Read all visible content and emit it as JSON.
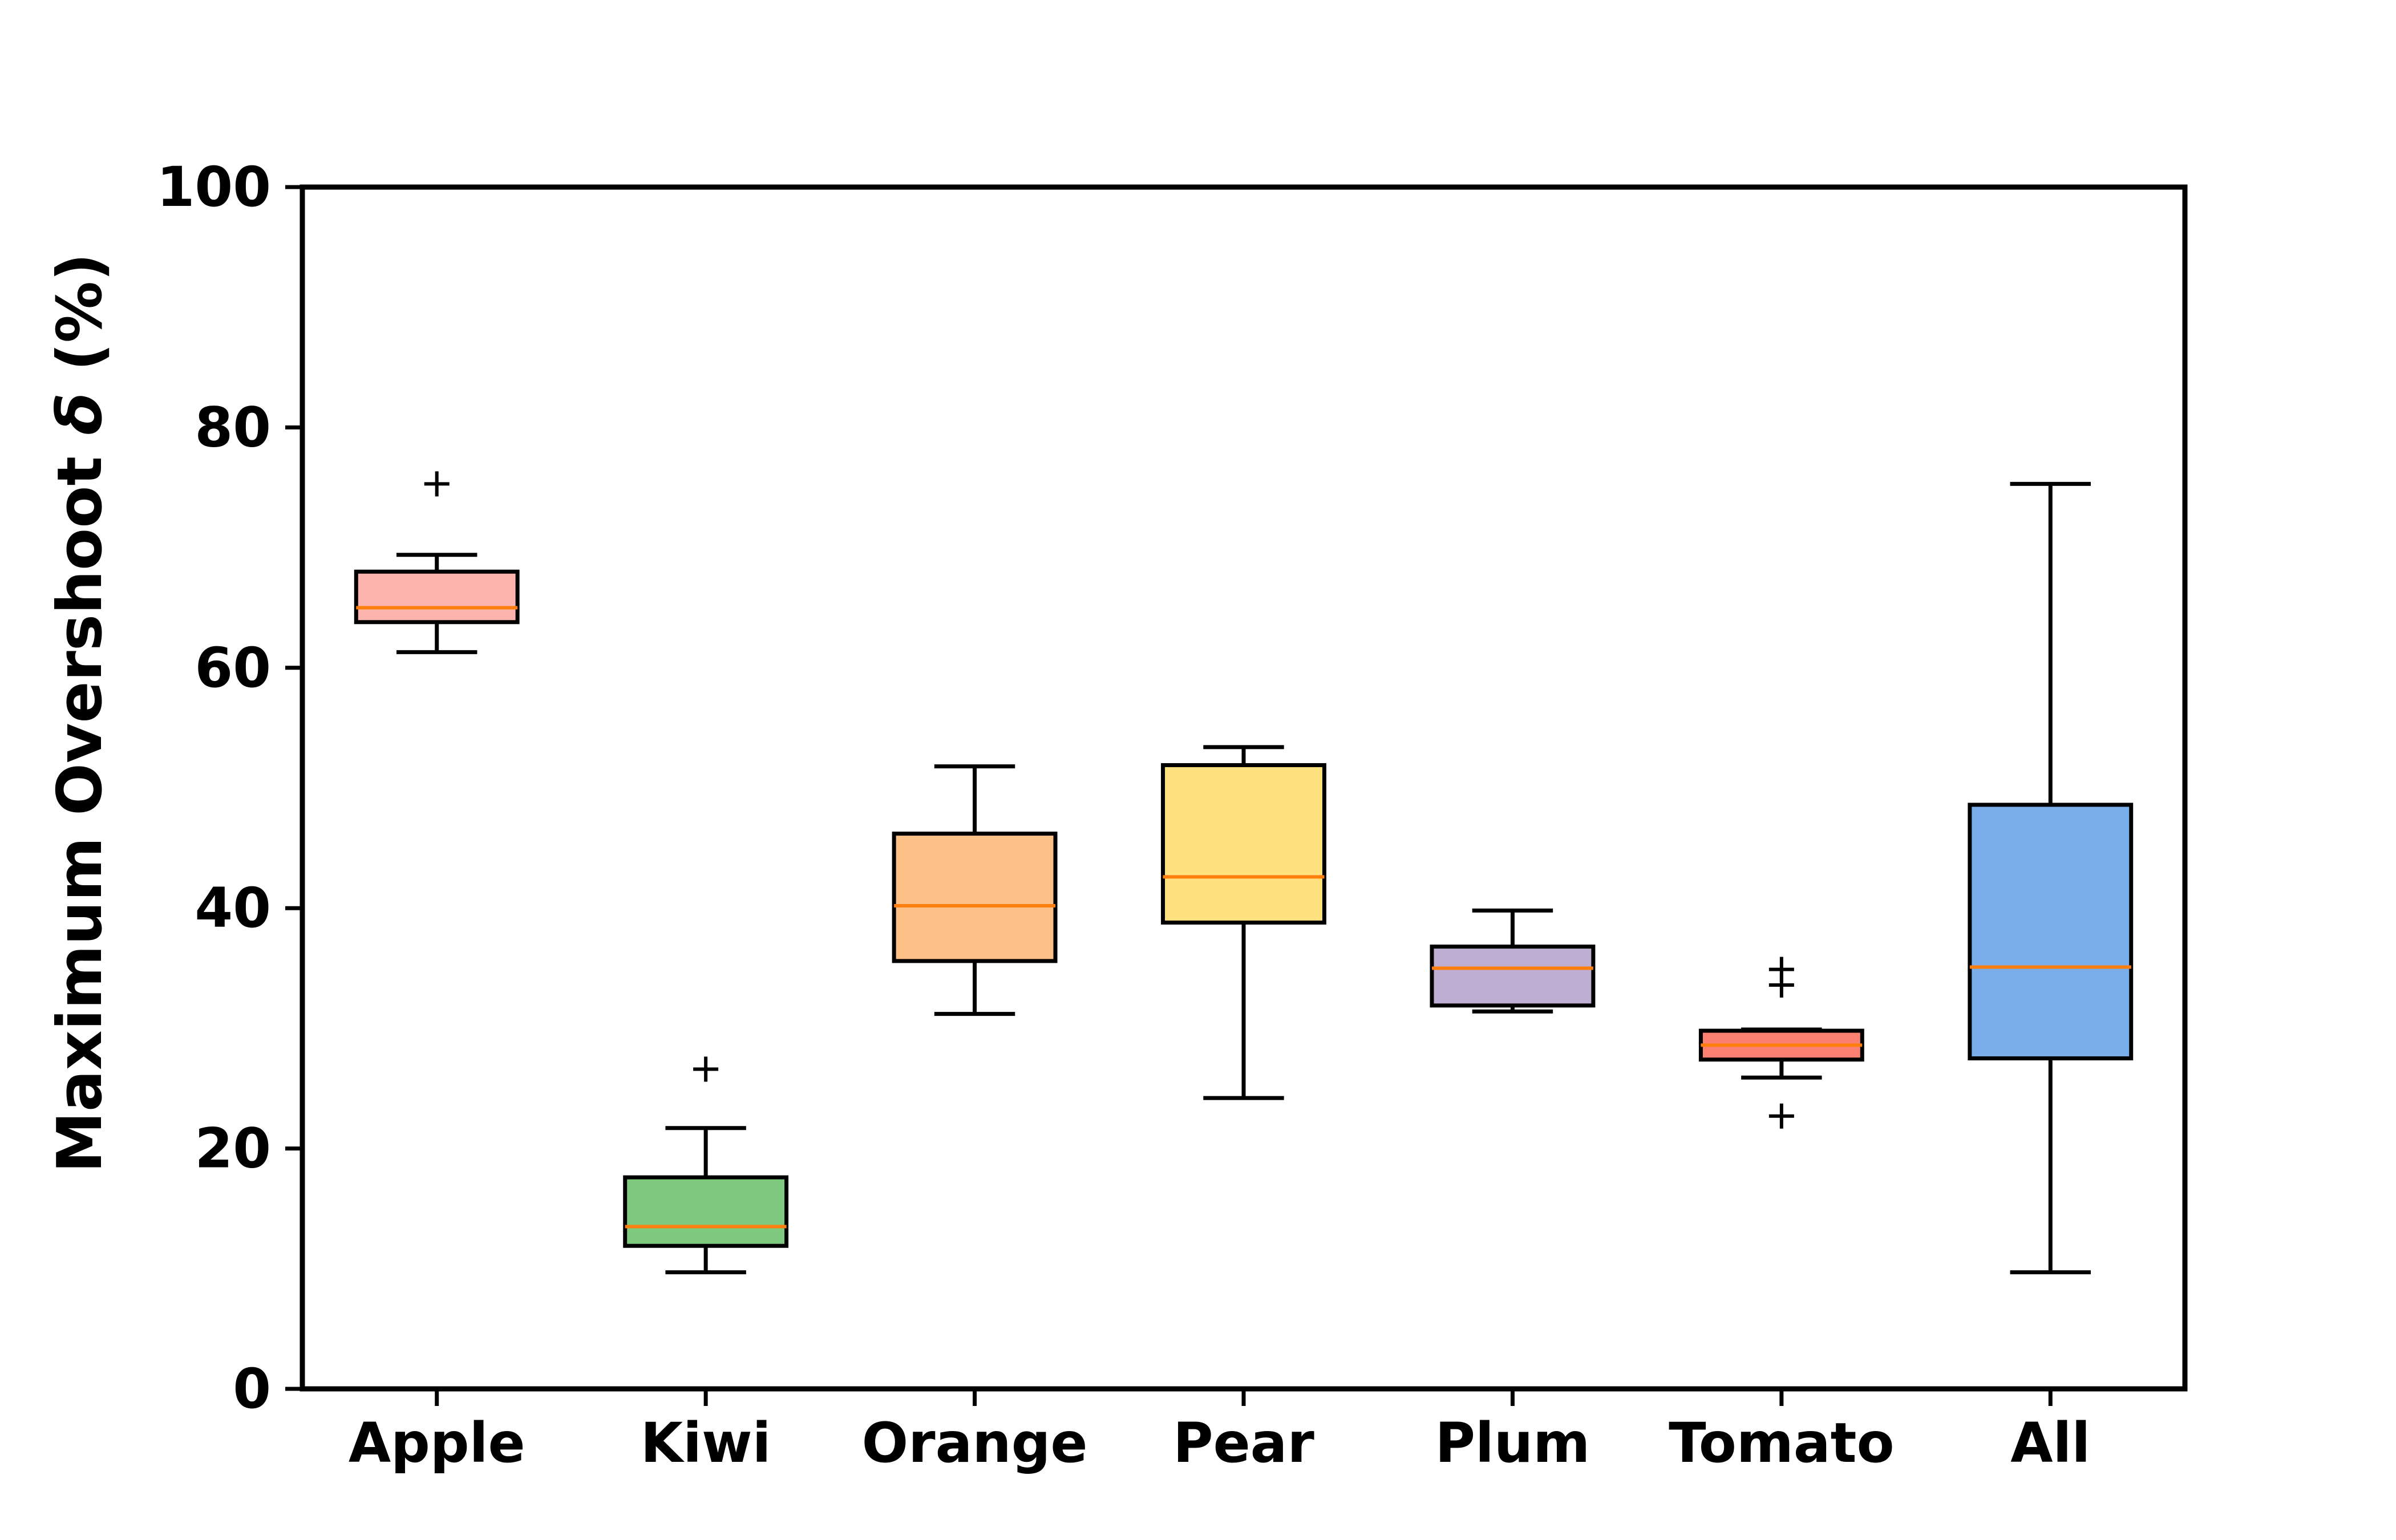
{
  "chart_data": {
    "type": "box",
    "ylabel_text": "Maximum Overshoot ",
    "ylabel_symbol": "δ",
    "ylabel_unit": " (%)",
    "xlabel": "",
    "title": "",
    "ylim": [
      0,
      100
    ],
    "yticks": [
      0,
      20,
      40,
      60,
      80,
      100
    ],
    "ytick_labels": [
      "0",
      "20",
      "40",
      "60",
      "80",
      "100"
    ],
    "grid": false,
    "categories": [
      "Apple",
      "Kiwi",
      "Orange",
      "Pear",
      "Plum",
      "Tomato",
      "All"
    ],
    "boxes": [
      {
        "label": "Apple",
        "whislo": 61.3,
        "q1": 63.8,
        "med": 65.0,
        "q3": 68.0,
        "whishi": 69.4,
        "fliers": [
          75.3
        ],
        "color": "#fbb4ae"
      },
      {
        "label": "Kiwi",
        "whislo": 9.7,
        "q1": 11.9,
        "med": 13.5,
        "q3": 17.6,
        "whishi": 21.7,
        "fliers": [
          26.6
        ],
        "color": "#7fc97f"
      },
      {
        "label": "Orange",
        "whislo": 31.2,
        "q1": 35.6,
        "med": 40.2,
        "q3": 46.2,
        "whishi": 51.8,
        "fliers": [],
        "color": "#fdc086"
      },
      {
        "label": "Pear",
        "whislo": 24.2,
        "q1": 38.8,
        "med": 42.6,
        "q3": 51.9,
        "whishi": 53.4,
        "fliers": [],
        "color": "#ffe17f"
      },
      {
        "label": "Plum",
        "whislo": 31.4,
        "q1": 31.9,
        "med": 35.0,
        "q3": 36.8,
        "whishi": 39.8,
        "fliers": [],
        "color": "#beaed4"
      },
      {
        "label": "Tomato",
        "whislo": 25.9,
        "q1": 27.4,
        "med": 28.6,
        "q3": 29.8,
        "whishi": 29.9,
        "fliers": [
          22.7,
          33.6,
          34.9
        ],
        "color": "#fb8072"
      },
      {
        "label": "All",
        "whislo": 9.7,
        "q1": 27.5,
        "med": 35.1,
        "q3": 48.6,
        "whishi": 75.3,
        "fliers": [],
        "color": "#7aaeea"
      }
    ],
    "median_color": "#ff7f0e",
    "edge_color": "#000000"
  }
}
